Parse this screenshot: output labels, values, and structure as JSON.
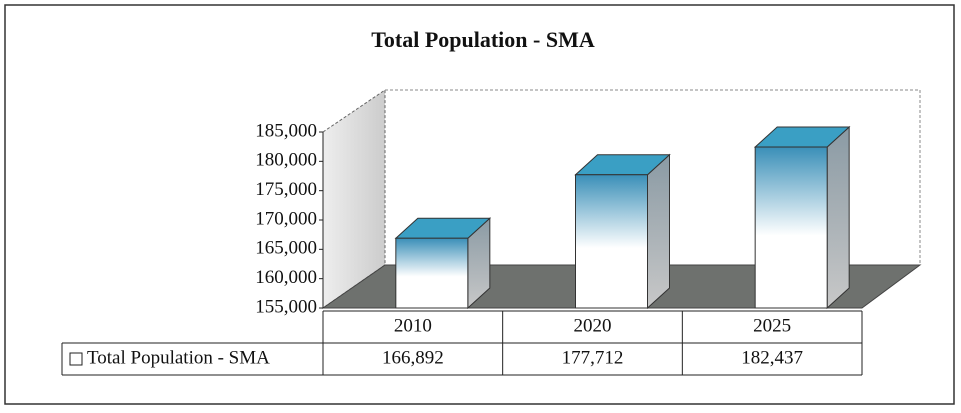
{
  "chart_data": {
    "type": "bar3d",
    "title": "Total Population - SMA",
    "categories": [
      "2010",
      "2020",
      "2025"
    ],
    "series": [
      {
        "name": "Total Population - SMA",
        "color": "#3a9fc4",
        "values": [
          166892,
          177712,
          182437
        ],
        "value_labels": [
          "166,892",
          "177,712",
          "182,437"
        ]
      }
    ],
    "ylim": [
      155000,
      185000
    ],
    "yticks": [
      {
        "value": 155000,
        "label": "155,000"
      },
      {
        "value": 160000,
        "label": "160,000"
      },
      {
        "value": 165000,
        "label": "165,000"
      },
      {
        "value": 170000,
        "label": "170,000"
      },
      {
        "value": 175000,
        "label": "175,000"
      },
      {
        "value": 180000,
        "label": "180,000"
      },
      {
        "value": 185000,
        "label": "185,000"
      }
    ],
    "data_table": true
  }
}
